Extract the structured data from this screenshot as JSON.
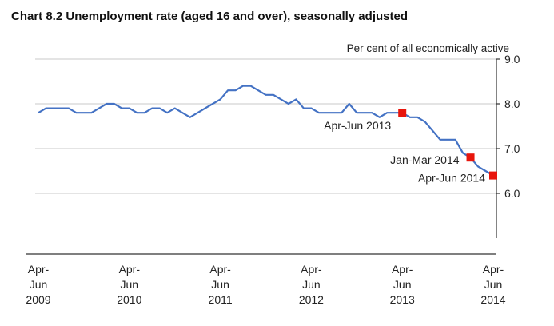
{
  "chart_data": {
    "type": "line",
    "title": "Chart 8.2 Unemployment rate (aged 16 and over), seasonally adjusted",
    "ylabel": "Per cent of all economically active",
    "ylim": [
      5.0,
      9.0
    ],
    "yticks": [
      "9.0",
      "8.0",
      "7.0",
      "6.0"
    ],
    "ytick_values": [
      9.0,
      8.0,
      7.0,
      6.0
    ],
    "xticks": [
      {
        "label": [
          "Apr-",
          "Jun",
          "2009"
        ],
        "index": 0
      },
      {
        "label": [
          "Apr-",
          "Jun",
          "2010"
        ],
        "index": 12
      },
      {
        "label": [
          "Apr-",
          "Jun",
          "2011"
        ],
        "index": 24
      },
      {
        "label": [
          "Apr-",
          "Jun",
          "2012"
        ],
        "index": 36
      },
      {
        "label": [
          "Apr-",
          "Jun",
          "2013"
        ],
        "index": 48
      },
      {
        "label": [
          "Apr-",
          "Jun",
          "2014"
        ],
        "index": 60
      }
    ],
    "grid": true,
    "color": "#4472c4",
    "marker_color": "#e8150c",
    "values": [
      7.8,
      7.9,
      7.9,
      7.9,
      7.9,
      7.8,
      7.8,
      7.8,
      7.9,
      8.0,
      8.0,
      7.9,
      7.9,
      7.8,
      7.8,
      7.9,
      7.9,
      7.8,
      7.9,
      7.8,
      7.7,
      7.8,
      7.9,
      8.0,
      8.1,
      8.3,
      8.3,
      8.4,
      8.4,
      8.3,
      8.2,
      8.2,
      8.1,
      8.0,
      8.1,
      7.9,
      7.9,
      7.8,
      7.8,
      7.8,
      7.8,
      8.0,
      7.8,
      7.8,
      7.8,
      7.7,
      7.8,
      7.8,
      7.8,
      7.7,
      7.7,
      7.6,
      7.4,
      7.2,
      7.2,
      7.2,
      6.9,
      6.8,
      6.6,
      6.5,
      6.4
    ],
    "annotations": [
      {
        "text": "Apr-Jun 2013",
        "index": 48,
        "value": 7.8
      },
      {
        "text": "Jan-Mar 2014",
        "index": 57,
        "value": 6.8
      },
      {
        "text": "Apr-Jun 2014",
        "index": 60,
        "value": 6.4
      }
    ]
  }
}
